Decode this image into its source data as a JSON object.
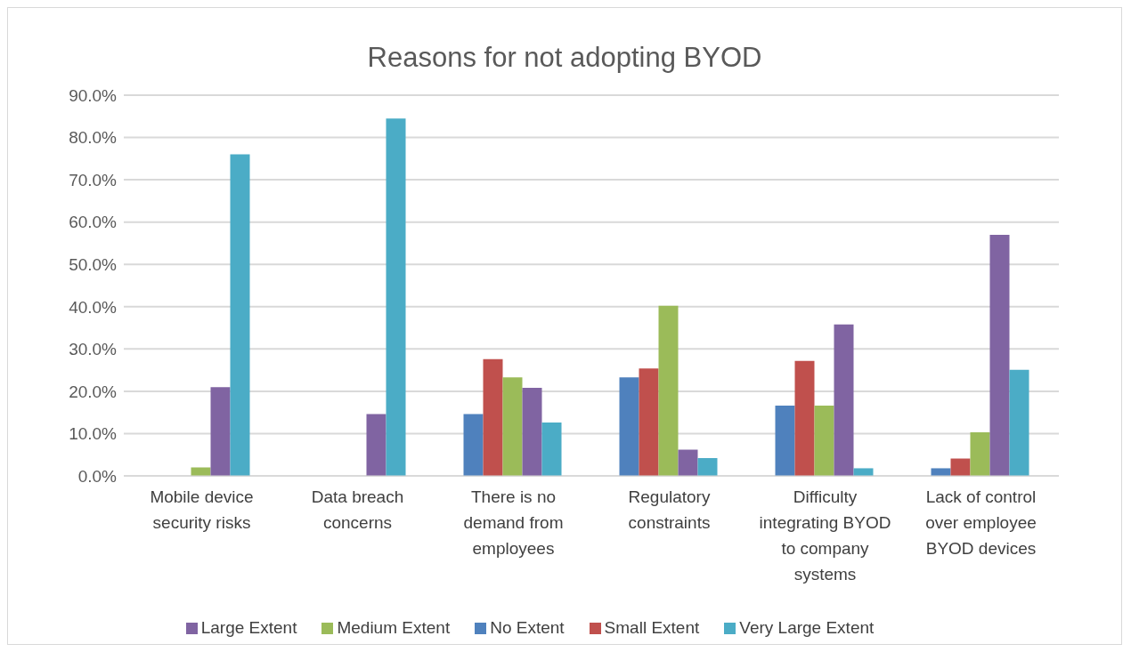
{
  "chart_data": {
    "type": "bar",
    "title": "Reasons for not adopting BYOD",
    "categories": [
      "Mobile device security risks",
      "Data breach concerns",
      "There is no demand from employees",
      "Regulatory constraints",
      "Difficulty integrating BYOD to company systems",
      "Lack of control over employee BYOD devices"
    ],
    "series": [
      {
        "name": "No Extent",
        "color": "#4f81bd",
        "values": [
          0,
          0,
          14.6,
          23.3,
          16.6,
          1.8
        ]
      },
      {
        "name": "Small Extent",
        "color": "#c0504d",
        "values": [
          0,
          0,
          27.6,
          25.4,
          27.2,
          4.1
        ]
      },
      {
        "name": "Medium Extent",
        "color": "#9bbb59",
        "values": [
          2,
          0,
          23.3,
          40.2,
          16.6,
          10.3
        ]
      },
      {
        "name": "Large Extent",
        "color": "#8064a2",
        "values": [
          21,
          14.6,
          20.8,
          6.2,
          35.8,
          57
        ]
      },
      {
        "name": "Very Large Extent",
        "color": "#4bacc6",
        "values": [
          76,
          84.5,
          12.6,
          4.2,
          1.8,
          25.1
        ]
      }
    ],
    "ylim": [
      0,
      90
    ],
    "yticks": [
      {
        "value": 0,
        "label": "0.0%"
      },
      {
        "value": 10,
        "label": "10.0%"
      },
      {
        "value": 20,
        "label": "20.0%"
      },
      {
        "value": 30,
        "label": "30.0%"
      },
      {
        "value": 40,
        "label": "40.0%"
      },
      {
        "value": 50,
        "label": "50.0%"
      },
      {
        "value": 60,
        "label": "60.0%"
      },
      {
        "value": 70,
        "label": "70.0%"
      },
      {
        "value": 80,
        "label": "80.0%"
      },
      {
        "value": 90,
        "label": "90.0%"
      }
    ],
    "grid": "y",
    "legend": "bottom"
  }
}
